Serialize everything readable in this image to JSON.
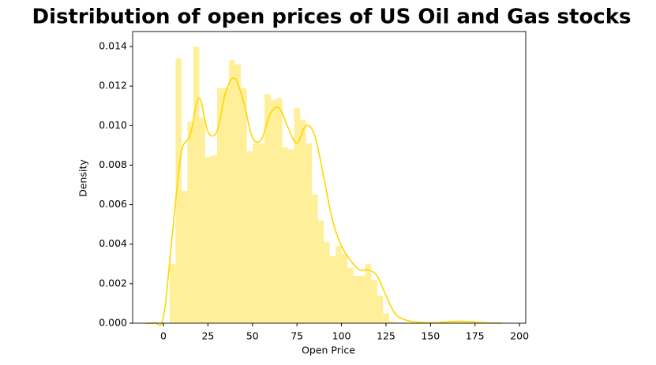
{
  "chart_data": {
    "type": "histogram",
    "title": "Distribution of open prices of US Oil and Gas stocks",
    "x_label": "Open Price",
    "y_label": "Density",
    "bins": [
      3.5,
      6.83,
      10.16,
      13.49,
      16.82,
      20.15,
      23.48,
      26.81,
      30.14,
      33.47,
      36.8,
      40.13,
      43.46,
      46.79,
      50.12,
      53.45,
      56.78,
      60.11,
      63.44,
      66.77,
      70.1,
      73.43,
      76.76,
      80.09,
      83.42,
      86.75,
      90.08,
      93.41,
      96.74,
      100.07,
      103.4,
      106.73,
      110.06,
      113.39,
      116.72,
      120.05,
      123.38,
      126.71,
      130.04,
      133.37,
      136.7,
      140.03,
      143.36,
      146.69,
      150.02,
      153.35,
      156.68,
      160.01,
      163.34,
      166.67,
      170.0,
      173.33,
      176.66,
      179.99,
      183.32,
      186.65,
      189.98
    ],
    "values": [
      0.003,
      0.0134,
      0.0067,
      0.0102,
      0.014,
      0.0104,
      0.0084,
      0.0085,
      0.0119,
      0.0119,
      0.0133,
      0.0131,
      0.0119,
      0.0087,
      0.0091,
      0.0091,
      0.0116,
      0.0113,
      0.0114,
      0.0089,
      0.0088,
      0.0109,
      0.0103,
      0.0091,
      0.0065,
      0.0052,
      0.0041,
      0.0034,
      0.0039,
      0.0035,
      0.0028,
      0.0024,
      0.0024,
      0.003,
      0.0022,
      0.0014,
      0.0005,
      0.0001,
      5e-05,
      3e-05,
      2e-05,
      2e-05,
      1e-05,
      1e-05,
      2e-05,
      3e-05,
      5e-05,
      8e-05,
      0.0001,
      0.0001,
      8e-05,
      6e-05,
      4e-05,
      3e-05,
      2e-05,
      1e-05
    ],
    "color": "#ffd700",
    "bar_alpha": 0.4,
    "kde": {
      "x": [
        -10,
        -5,
        0,
        5,
        10,
        15,
        20,
        25,
        30,
        35,
        40,
        45,
        50,
        55,
        60,
        65,
        70,
        75,
        80,
        85,
        90,
        95,
        100,
        105,
        110,
        115,
        120,
        125,
        130,
        135,
        140,
        145,
        150,
        155,
        160,
        165,
        170,
        175,
        180,
        185,
        190
      ],
      "y": [
        0,
        2e-05,
        0.0003,
        0.0045,
        0.0086,
        0.0095,
        0.0114,
        0.0097,
        0.0097,
        0.0117,
        0.0124,
        0.0112,
        0.0094,
        0.0093,
        0.0106,
        0.0109,
        0.0099,
        0.0091,
        0.01,
        0.0095,
        0.0074,
        0.0052,
        0.0039,
        0.0032,
        0.0027,
        0.0027,
        0.0024,
        0.0014,
        0.0005,
        0.0002,
        8e-05,
        4e-05,
        3e-05,
        4e-05,
        8e-05,
        0.0001,
        9e-05,
        6e-05,
        3e-05,
        1e-05,
        0
      ]
    },
    "xlim": [
      -17.3,
      203.5
    ],
    "ylim": [
      0,
      0.01476
    ],
    "xticks": [
      0,
      25,
      50,
      75,
      100,
      125,
      150,
      175,
      200
    ],
    "yticks": [
      {
        "value": 0,
        "label": "0.000"
      },
      {
        "value": 0.002,
        "label": "0.002"
      },
      {
        "value": 0.004,
        "label": "0.004"
      },
      {
        "value": 0.006,
        "label": "0.006"
      },
      {
        "value": 0.008,
        "label": "0.008"
      },
      {
        "value": 0.01,
        "label": "0.010"
      },
      {
        "value": 0.012,
        "label": "0.012"
      },
      {
        "value": 0.014,
        "label": "0.014"
      }
    ],
    "grid": false
  }
}
